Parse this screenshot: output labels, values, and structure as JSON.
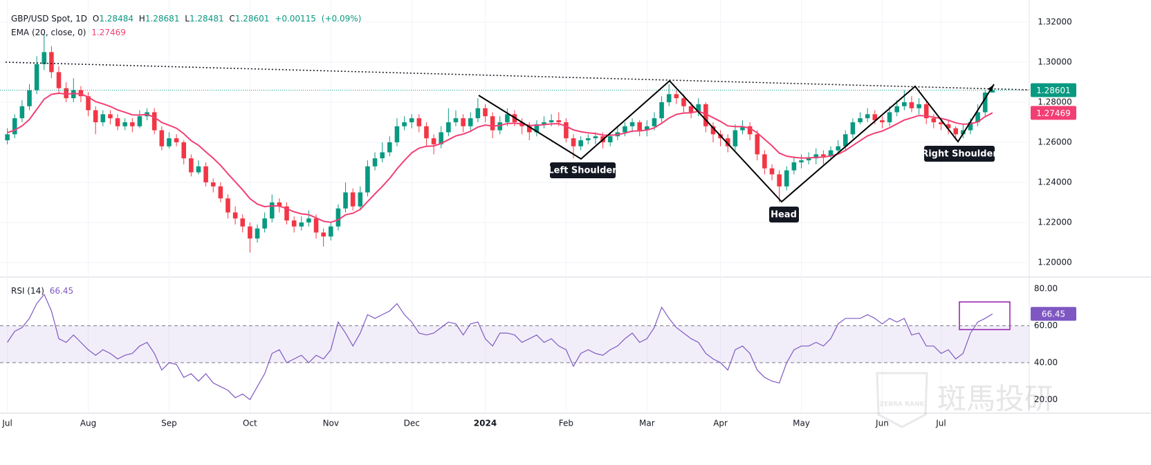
{
  "chart_data": [
    {
      "type": "candlestick",
      "title": "GBP/USD Spot, 1D",
      "ohlc": [
        {
          "label": "O",
          "value": 1.28484
        },
        {
          "label": "H",
          "value": 1.28681
        },
        {
          "label": "L",
          "value": 1.28481
        },
        {
          "label": "C",
          "value": 1.28601
        }
      ],
      "change": {
        "value": 0.00115,
        "label": "+0.00115"
      },
      "change_pct": {
        "value": 0.09,
        "label": "(+0.09%)"
      },
      "up_color": "#089981",
      "down_color": "#f23645",
      "xlim": [
        -1,
        139
      ],
      "xticks": [
        {
          "value": 0,
          "label": "Jul"
        },
        {
          "value": 11,
          "label": "Aug"
        },
        {
          "value": 22,
          "label": "Sep"
        },
        {
          "value": 33,
          "label": "Oct"
        },
        {
          "value": 44,
          "label": "Nov"
        },
        {
          "value": 55,
          "label": "Dec"
        },
        {
          "value": 65,
          "label": "2024"
        },
        {
          "value": 76,
          "label": "Feb"
        },
        {
          "value": 87,
          "label": "Mar"
        },
        {
          "value": 97,
          "label": "Apr"
        },
        {
          "value": 108,
          "label": "May"
        },
        {
          "value": 119,
          "label": "Jun"
        },
        {
          "value": 127,
          "label": "Jul"
        }
      ],
      "ylim": [
        1.1931,
        1.331
      ],
      "yticks": [
        {
          "value": 1.2,
          "label": "1.20000"
        },
        {
          "value": 1.22,
          "label": "1.22000"
        },
        {
          "value": 1.24,
          "label": "1.24000"
        },
        {
          "value": 1.26,
          "label": "1.26000"
        },
        {
          "value": 1.28,
          "label": "1.28000"
        },
        {
          "value": 1.3,
          "label": "1.30000"
        },
        {
          "value": 1.32,
          "label": "1.32000"
        }
      ],
      "open": [
        1.261,
        1.264,
        1.272,
        1.278,
        1.286,
        1.299,
        1.305,
        1.295,
        1.287,
        1.282,
        1.286,
        1.283,
        1.276,
        1.27,
        1.274,
        1.272,
        1.268,
        1.27,
        1.268,
        1.273,
        1.275,
        1.266,
        1.258,
        1.262,
        1.26,
        1.252,
        1.245,
        1.248,
        1.24,
        1.238,
        1.232,
        1.225,
        1.222,
        1.218,
        1.212,
        1.217,
        1.222,
        1.23,
        1.228,
        1.221,
        1.218,
        1.22,
        1.222,
        1.215,
        1.213,
        1.218,
        1.227,
        1.235,
        1.228,
        1.235,
        1.248,
        1.252,
        1.255,
        1.26,
        1.268,
        1.27,
        1.272,
        1.268,
        1.262,
        1.259,
        1.265,
        1.27,
        1.272,
        1.268,
        1.272,
        1.277,
        1.273,
        1.266,
        1.27,
        1.274,
        1.27,
        1.268,
        1.265,
        1.269,
        1.27,
        1.271,
        1.27,
        1.262,
        1.258,
        1.261,
        1.262,
        1.263,
        1.26,
        1.263,
        1.265,
        1.268,
        1.27,
        1.266,
        1.268,
        1.272,
        1.28,
        1.284,
        1.282,
        1.278,
        1.275,
        1.279,
        1.268,
        1.264,
        1.262,
        1.258,
        1.266,
        1.268,
        1.264,
        1.254,
        1.247,
        1.244,
        1.238,
        1.246,
        1.25,
        1.251,
        1.252,
        1.254,
        1.253,
        1.256,
        1.258,
        1.264,
        1.27,
        1.272,
        1.274,
        1.271,
        1.27,
        1.275,
        1.278,
        1.28,
        1.277,
        1.279,
        1.272,
        1.27,
        1.269,
        1.267,
        1.264,
        1.266,
        1.27,
        1.275,
        1.28484
      ],
      "high": [
        1.267,
        1.274,
        1.281,
        1.289,
        1.303,
        1.314,
        1.308,
        1.298,
        1.29,
        1.292,
        1.288,
        1.285,
        1.278,
        1.276,
        1.276,
        1.274,
        1.272,
        1.272,
        1.276,
        1.277,
        1.277,
        1.268,
        1.265,
        1.264,
        1.261,
        1.254,
        1.251,
        1.25,
        1.242,
        1.24,
        1.234,
        1.228,
        1.224,
        1.22,
        1.219,
        1.225,
        1.234,
        1.232,
        1.23,
        1.223,
        1.223,
        1.226,
        1.224,
        1.217,
        1.22,
        1.229,
        1.24,
        1.237,
        1.238,
        1.251,
        1.255,
        1.26,
        1.263,
        1.272,
        1.273,
        1.274,
        1.274,
        1.27,
        1.264,
        1.268,
        1.277,
        1.276,
        1.274,
        1.275,
        1.282,
        1.279,
        1.275,
        1.273,
        1.277,
        1.276,
        1.272,
        1.27,
        1.271,
        1.273,
        1.274,
        1.275,
        1.272,
        1.264,
        1.263,
        1.264,
        1.265,
        1.265,
        1.265,
        1.268,
        1.27,
        1.272,
        1.271,
        1.271,
        1.275,
        1.283,
        1.289,
        1.286,
        1.284,
        1.28,
        1.282,
        1.28,
        1.27,
        1.266,
        1.264,
        1.269,
        1.271,
        1.27,
        1.266,
        1.256,
        1.249,
        1.246,
        1.248,
        1.253,
        1.254,
        1.255,
        1.257,
        1.256,
        1.258,
        1.261,
        1.266,
        1.272,
        1.275,
        1.277,
        1.276,
        1.273,
        1.278,
        1.281,
        1.286,
        1.283,
        1.282,
        1.28,
        1.274,
        1.272,
        1.271,
        1.268,
        1.269,
        1.272,
        1.279,
        1.286,
        1.28681
      ],
      "low": [
        1.259,
        1.262,
        1.27,
        1.276,
        1.284,
        1.296,
        1.292,
        1.284,
        1.28,
        1.28,
        1.28,
        1.273,
        1.264,
        1.268,
        1.269,
        1.266,
        1.266,
        1.265,
        1.267,
        1.271,
        1.264,
        1.256,
        1.257,
        1.258,
        1.249,
        1.243,
        1.244,
        1.238,
        1.235,
        1.23,
        1.222,
        1.219,
        1.215,
        1.205,
        1.21,
        1.215,
        1.22,
        1.225,
        1.219,
        1.215,
        1.216,
        1.218,
        1.212,
        1.208,
        1.211,
        1.216,
        1.225,
        1.226,
        1.226,
        1.233,
        1.246,
        1.25,
        1.253,
        1.258,
        1.266,
        1.267,
        1.265,
        1.258,
        1.254,
        1.257,
        1.263,
        1.268,
        1.265,
        1.266,
        1.27,
        1.27,
        1.262,
        1.264,
        1.268,
        1.268,
        1.264,
        1.261,
        1.263,
        1.267,
        1.268,
        1.268,
        1.26,
        1.252,
        1.256,
        1.259,
        1.259,
        1.257,
        1.258,
        1.261,
        1.263,
        1.265,
        1.263,
        1.263,
        1.266,
        1.27,
        1.278,
        1.279,
        1.275,
        1.272,
        1.273,
        1.265,
        1.26,
        1.258,
        1.255,
        1.256,
        1.264,
        1.261,
        1.251,
        1.244,
        1.241,
        1.23,
        1.236,
        1.244,
        1.247,
        1.249,
        1.249,
        1.249,
        1.251,
        1.254,
        1.256,
        1.262,
        1.269,
        1.27,
        1.269,
        1.267,
        1.268,
        1.273,
        1.276,
        1.275,
        1.274,
        1.269,
        1.267,
        1.266,
        1.264,
        1.261,
        1.262,
        1.264,
        1.268,
        1.273,
        1.28481
      ],
      "close": [
        1.264,
        1.272,
        1.278,
        1.286,
        1.299,
        1.305,
        1.295,
        1.287,
        1.282,
        1.286,
        1.283,
        1.276,
        1.27,
        1.274,
        1.272,
        1.268,
        1.27,
        1.268,
        1.273,
        1.275,
        1.266,
        1.258,
        1.262,
        1.26,
        1.252,
        1.245,
        1.248,
        1.24,
        1.238,
        1.232,
        1.225,
        1.222,
        1.218,
        1.212,
        1.217,
        1.222,
        1.23,
        1.228,
        1.221,
        1.218,
        1.22,
        1.222,
        1.215,
        1.213,
        1.218,
        1.227,
        1.235,
        1.228,
        1.235,
        1.248,
        1.252,
        1.255,
        1.26,
        1.268,
        1.27,
        1.272,
        1.268,
        1.262,
        1.259,
        1.265,
        1.27,
        1.272,
        1.268,
        1.272,
        1.277,
        1.273,
        1.266,
        1.27,
        1.274,
        1.27,
        1.268,
        1.265,
        1.269,
        1.27,
        1.271,
        1.27,
        1.262,
        1.258,
        1.261,
        1.262,
        1.263,
        1.26,
        1.263,
        1.265,
        1.268,
        1.27,
        1.266,
        1.268,
        1.272,
        1.28,
        1.284,
        1.282,
        1.278,
        1.275,
        1.279,
        1.268,
        1.264,
        1.262,
        1.258,
        1.266,
        1.268,
        1.264,
        1.254,
        1.247,
        1.244,
        1.238,
        1.246,
        1.25,
        1.251,
        1.252,
        1.254,
        1.253,
        1.256,
        1.258,
        1.264,
        1.27,
        1.272,
        1.274,
        1.271,
        1.27,
        1.275,
        1.278,
        1.28,
        1.277,
        1.279,
        1.272,
        1.27,
        1.269,
        1.267,
        1.264,
        1.266,
        1.27,
        1.275,
        1.2848,
        1.28601
      ],
      "series": [
        {
          "name": "EMA (20, close, 0)",
          "color": "#f23f73",
          "values": [
            1.2648,
            1.2661,
            1.2682,
            1.2714,
            1.2764,
            1.2815,
            1.2839,
            1.2845,
            1.284,
            1.2844,
            1.2841,
            1.2826,
            1.2803,
            1.2792,
            1.2779,
            1.2761,
            1.275,
            1.2737,
            1.2736,
            1.2739,
            1.2725,
            1.2699,
            1.2685,
            1.267,
            1.2643,
            1.2608,
            1.2585,
            1.2552,
            1.2521,
            1.2485,
            1.2443,
            1.2403,
            1.2363,
            1.2319,
            1.2292,
            1.2279,
            1.2283,
            1.2282,
            1.2269,
            1.2253,
            1.2243,
            1.2239,
            1.2223,
            1.2206,
            1.2201,
            1.2213,
            1.2238,
            1.2246,
            1.2265,
            1.2304,
            1.2343,
            1.238,
            1.242,
            1.2467,
            1.2509,
            1.2547,
            1.2571,
            1.258,
            1.2582,
            1.2594,
            1.2613,
            1.2632,
            1.2641,
            1.2655,
            1.2676,
            1.2686,
            1.2681,
            1.2684,
            1.2694,
            1.2695,
            1.2692,
            1.2684,
            1.2685,
            1.2688,
            1.2692,
            1.2693,
            1.268,
            1.2662,
            1.2653,
            1.2647,
            1.2644,
            1.2636,
            1.2635,
            1.2638,
            1.2646,
            1.2656,
            1.2657,
            1.2661,
            1.2672,
            1.2695,
            1.2721,
            1.2739,
            1.2746,
            1.2747,
            1.2755,
            1.2741,
            1.2723,
            1.2704,
            1.2682,
            1.2678,
            1.2678,
            1.2671,
            1.2647,
            1.2615,
            1.2583,
            1.2546,
            1.2531,
            1.2525,
            1.2522,
            1.2522,
            1.2525,
            1.2526,
            1.2532,
            1.2541,
            1.2559,
            1.2584,
            1.2608,
            1.2632,
            1.2646,
            1.2656,
            1.2673,
            1.2692,
            1.2711,
            1.2722,
            1.2734,
            1.2731,
            1.2725,
            1.2719,
            1.271,
            1.2697,
            1.269,
            1.2692,
            1.2702,
            1.2728,
            1.27469
          ]
        }
      ],
      "annotations": [
        "Left Shoulder",
        "Head",
        "Right Shoulder"
      ],
      "watermark": "斑馬投研",
      "watermark_sub": "ZEBRA RANK"
    },
    {
      "type": "line",
      "name": "RSI (14)",
      "color": "#7e57c2",
      "ylim": [
        13,
        86
      ],
      "yticks": [
        {
          "value": 20,
          "label": "20.00"
        },
        {
          "value": 40,
          "label": "40.00"
        },
        {
          "value": 60,
          "label": "60.00"
        },
        {
          "value": 80,
          "label": "80.00"
        }
      ],
      "band": [
        40,
        60
      ],
      "band_color": "rgba(126,87,194,0.1)",
      "values": [
        51,
        57,
        59,
        64,
        72,
        77,
        68,
        53,
        51,
        55,
        51,
        47,
        44,
        47,
        45,
        42,
        44,
        45,
        49,
        51,
        45,
        36,
        40,
        39,
        32,
        34,
        30,
        34,
        29,
        27,
        25,
        21,
        23,
        20,
        27,
        34,
        45,
        47,
        40,
        42,
        44,
        40,
        44,
        42,
        47,
        62,
        56,
        49,
        56,
        66,
        64,
        66,
        68,
        72,
        66,
        62,
        56,
        55,
        56,
        59,
        62,
        61,
        55,
        61,
        62,
        53,
        49,
        56,
        56,
        55,
        51,
        53,
        55,
        51,
        53,
        49,
        47,
        38,
        45,
        47,
        45,
        44,
        47,
        49,
        53,
        56,
        51,
        53,
        59,
        70,
        64,
        59,
        56,
        53,
        51,
        45,
        42,
        40,
        36,
        47,
        49,
        45,
        36,
        32,
        30,
        29,
        40,
        47,
        49,
        49,
        51,
        49,
        53,
        61,
        64,
        64,
        64,
        66,
        64,
        61,
        64,
        62,
        64,
        55,
        56,
        49,
        49,
        45,
        47,
        42,
        45,
        56,
        62,
        64,
        66.45
      ]
    }
  ]
}
